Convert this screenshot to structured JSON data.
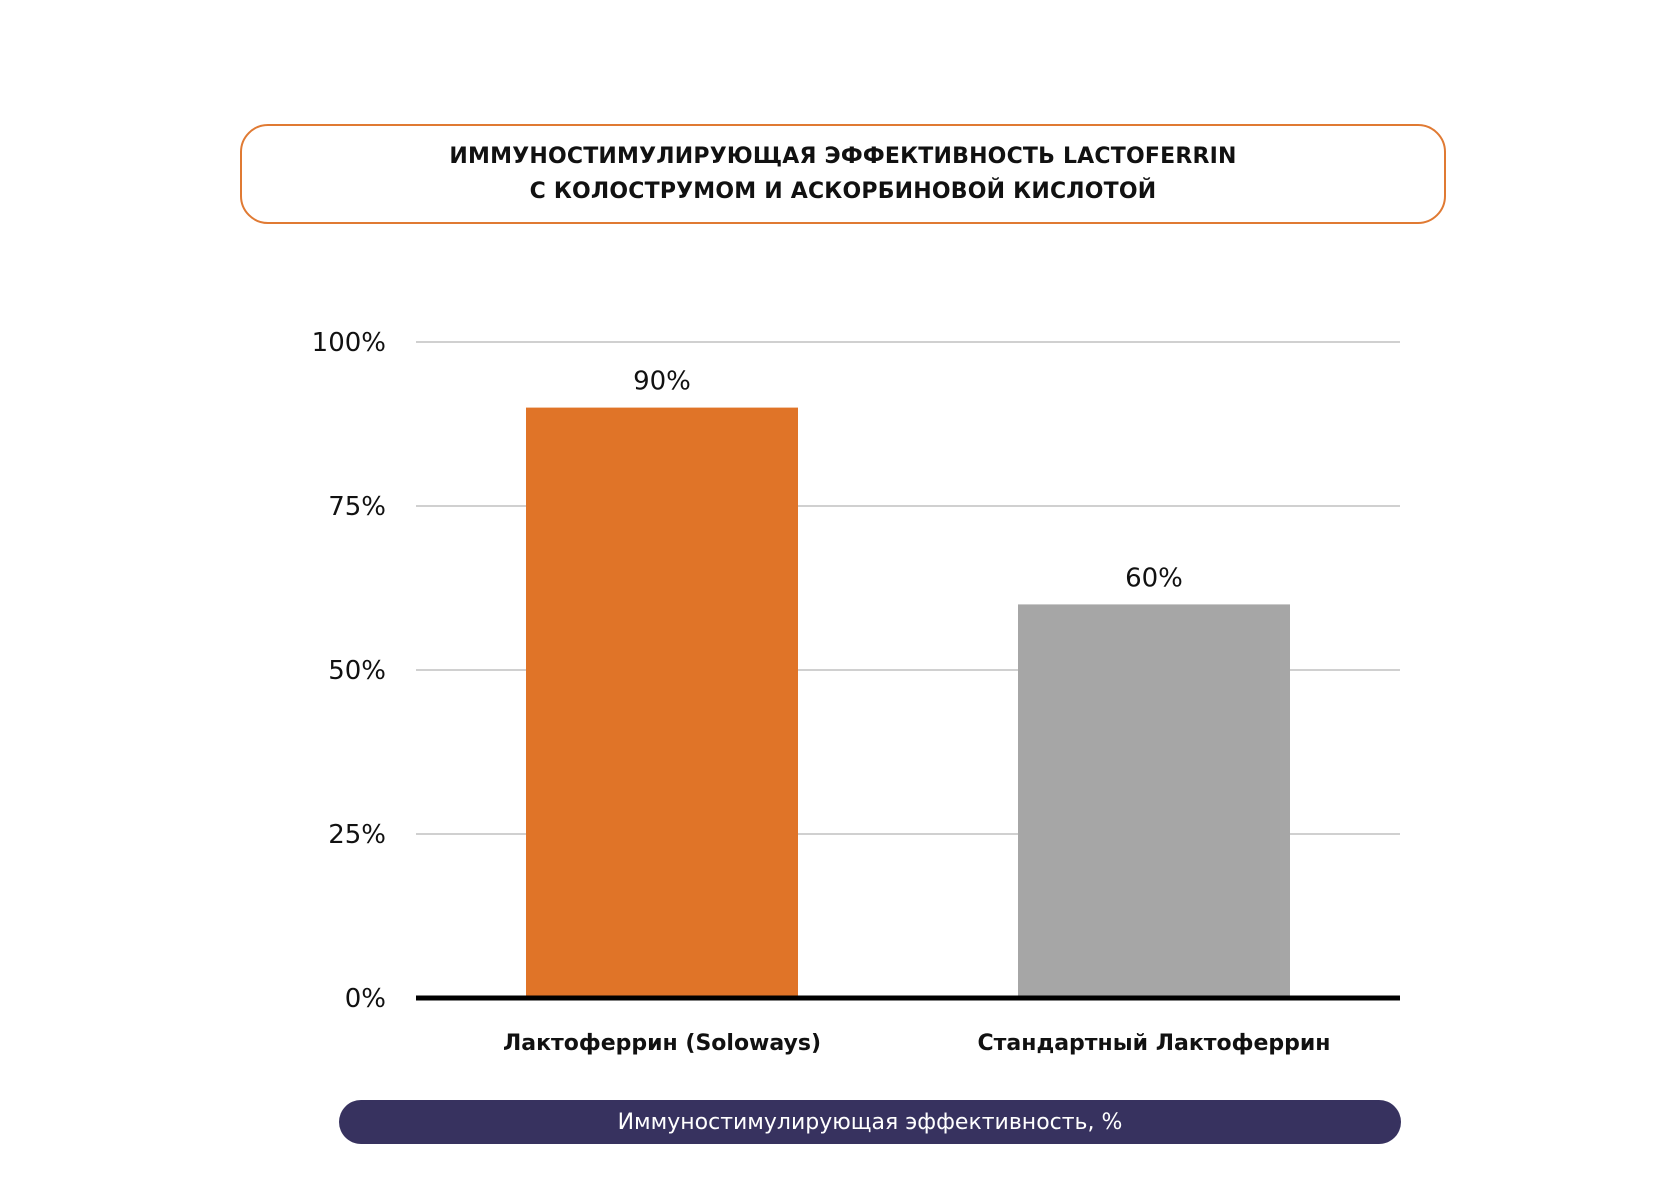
{
  "chart_data": {
    "type": "bar",
    "title": [
      "ИММУНОСТИМУЛИРУЮЩАЯ ЭФФЕКТИВНОСТЬ LACTOFERRIN",
      "С КОЛОСТРУМОМ И АСКОРБИНОВОЙ КИСЛОТОЙ"
    ],
    "categories": [
      "Лактоферрин (Soloways)",
      "Стандартный Лактоферрин"
    ],
    "values": [
      90,
      60
    ],
    "data_labels": [
      "90%",
      "60%"
    ],
    "colors": [
      "#e07428",
      "#a6a6a6"
    ],
    "yticks": [
      0,
      25,
      50,
      75,
      100
    ],
    "ytick_labels": [
      "0%",
      "25%",
      "50%",
      "75%",
      "100%"
    ],
    "ylim": [
      0,
      100
    ],
    "grid": true,
    "xlabel": "Иммуностимулирующая эффективность, %",
    "ylabel": ""
  }
}
